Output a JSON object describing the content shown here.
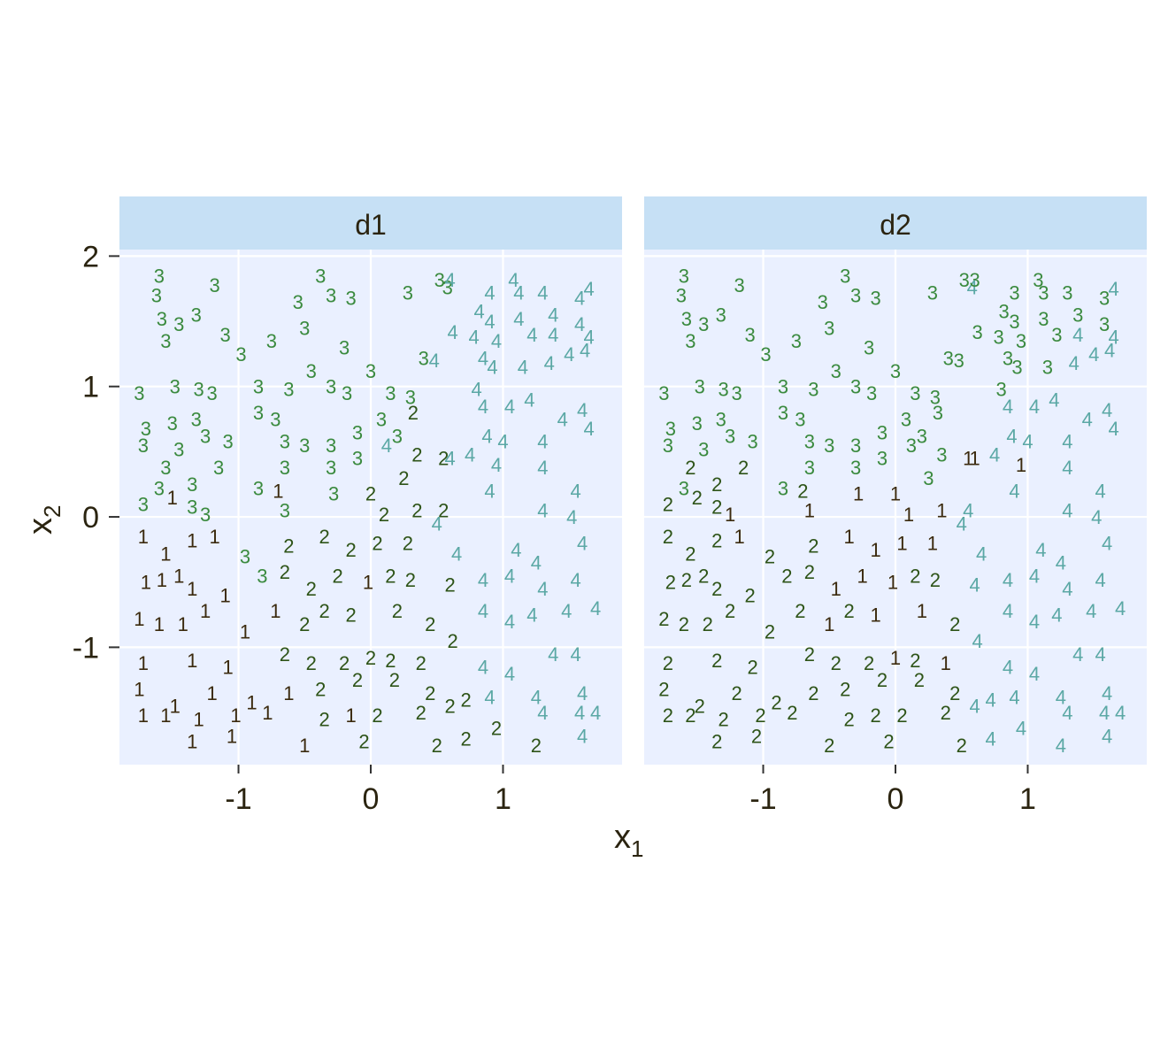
{
  "chart_data": {
    "type": "scatter",
    "facets": [
      "d1",
      "d2"
    ],
    "xlabel": {
      "main": "x",
      "sub": "1"
    },
    "ylabel": {
      "main": "x",
      "sub": "2"
    },
    "xlim": [
      -1.9,
      1.9
    ],
    "ylim": [
      -1.9,
      2.05
    ],
    "xticks": [
      -1,
      0,
      1
    ],
    "yticks": [
      -1,
      0,
      1,
      2
    ],
    "xtick_labels": [
      "-1",
      "0",
      "1"
    ],
    "ytick_labels": [
      "-1",
      "0",
      "1",
      "2"
    ],
    "grid": true,
    "legend": "none",
    "colors": {
      "1": "#3b2a0e",
      "2": "#2e5418",
      "3": "#3a8a3e",
      "4": "#5ba8a5"
    },
    "strip_color": "#c6e0f5",
    "panel_color": "#eaf0ff",
    "points": [
      [
        -1.6,
        1.85,
        "3",
        "3"
      ],
      [
        -1.62,
        1.7,
        "3",
        "3"
      ],
      [
        -1.58,
        1.52,
        "3",
        "3"
      ],
      [
        -1.55,
        1.35,
        "3",
        "3"
      ],
      [
        -1.45,
        1.48,
        "3",
        "3"
      ],
      [
        -1.32,
        1.55,
        "3",
        "3"
      ],
      [
        -1.18,
        1.78,
        "3",
        "3"
      ],
      [
        -1.1,
        1.4,
        "3",
        "3"
      ],
      [
        -0.98,
        1.25,
        "3",
        "3"
      ],
      [
        -0.75,
        1.35,
        "3",
        "3"
      ],
      [
        -0.55,
        1.65,
        "3",
        "3"
      ],
      [
        -0.5,
        1.45,
        "3",
        "3"
      ],
      [
        -0.38,
        1.85,
        "3",
        "3"
      ],
      [
        -0.3,
        1.7,
        "3",
        "3"
      ],
      [
        -0.15,
        1.68,
        "3",
        "3"
      ],
      [
        -0.2,
        1.3,
        "3",
        "3"
      ],
      [
        0.28,
        1.72,
        "3",
        "3"
      ],
      [
        0.52,
        1.82,
        "3",
        "3"
      ],
      [
        0.58,
        1.76,
        "3",
        "4"
      ],
      [
        0.6,
        1.82,
        "4",
        "3"
      ],
      [
        0.9,
        1.72,
        "4",
        "3"
      ],
      [
        1.08,
        1.82,
        "4",
        "3"
      ],
      [
        1.12,
        1.72,
        "4",
        "3"
      ],
      [
        1.3,
        1.72,
        "4",
        "3"
      ],
      [
        1.58,
        1.68,
        "4",
        "3"
      ],
      [
        1.65,
        1.75,
        "4",
        "4"
      ],
      [
        0.82,
        1.58,
        "4",
        "3"
      ],
      [
        0.9,
        1.5,
        "4",
        "3"
      ],
      [
        1.12,
        1.52,
        "4",
        "3"
      ],
      [
        1.38,
        1.55,
        "4",
        "3"
      ],
      [
        1.58,
        1.48,
        "4",
        "3"
      ],
      [
        0.62,
        1.42,
        "4",
        "3"
      ],
      [
        0.78,
        1.38,
        "4",
        "3"
      ],
      [
        0.95,
        1.35,
        "4",
        "3"
      ],
      [
        1.22,
        1.4,
        "4",
        "3"
      ],
      [
        1.38,
        1.4,
        "4",
        "4"
      ],
      [
        1.65,
        1.38,
        "4",
        "4"
      ],
      [
        1.62,
        1.28,
        "4",
        "4"
      ],
      [
        0.85,
        1.22,
        "4",
        "3"
      ],
      [
        0.92,
        1.15,
        "4",
        "3"
      ],
      [
        1.15,
        1.15,
        "4",
        "3"
      ],
      [
        1.35,
        1.18,
        "4",
        "4"
      ],
      [
        1.5,
        1.25,
        "4",
        "4"
      ],
      [
        0.4,
        1.22,
        "3",
        "3"
      ],
      [
        0.48,
        1.2,
        "4",
        "3"
      ],
      [
        -1.48,
        1.0,
        "3",
        "3"
      ],
      [
        -1.75,
        0.95,
        "3",
        "3"
      ],
      [
        -1.3,
        0.98,
        "3",
        "3"
      ],
      [
        -1.2,
        0.95,
        "3",
        "3"
      ],
      [
        -0.85,
        1.0,
        "3",
        "3"
      ],
      [
        -0.62,
        0.98,
        "3",
        "3"
      ],
      [
        -0.45,
        1.12,
        "3",
        "3"
      ],
      [
        -0.3,
        1.0,
        "3",
        "3"
      ],
      [
        -0.18,
        0.95,
        "3",
        "3"
      ],
      [
        0.0,
        1.12,
        "3",
        "3"
      ],
      [
        0.15,
        0.95,
        "3",
        "3"
      ],
      [
        0.3,
        0.92,
        "3",
        "3"
      ],
      [
        0.32,
        0.8,
        "2",
        "3"
      ],
      [
        0.8,
        0.98,
        "4",
        "3"
      ],
      [
        0.85,
        0.85,
        "4",
        "4"
      ],
      [
        1.05,
        0.85,
        "4",
        "4"
      ],
      [
        1.2,
        0.9,
        "4",
        "4"
      ],
      [
        1.45,
        0.75,
        "4",
        "4"
      ],
      [
        1.6,
        0.82,
        "4",
        "4"
      ],
      [
        1.65,
        0.68,
        "4",
        "4"
      ],
      [
        -1.7,
        0.68,
        "3",
        "3"
      ],
      [
        -1.72,
        0.55,
        "3",
        "3"
      ],
      [
        -1.5,
        0.72,
        "3",
        "3"
      ],
      [
        -1.45,
        0.52,
        "3",
        "3"
      ],
      [
        -1.32,
        0.75,
        "3",
        "3"
      ],
      [
        -1.25,
        0.62,
        "3",
        "3"
      ],
      [
        -1.08,
        0.58,
        "3",
        "3"
      ],
      [
        -0.85,
        0.8,
        "3",
        "3"
      ],
      [
        -0.72,
        0.75,
        "3",
        "3"
      ],
      [
        -0.65,
        0.58,
        "3",
        "3"
      ],
      [
        -0.5,
        0.55,
        "3",
        "3"
      ],
      [
        -0.3,
        0.55,
        "3",
        "3"
      ],
      [
        -0.1,
        0.65,
        "3",
        "3"
      ],
      [
        0.08,
        0.75,
        "3",
        "3"
      ],
      [
        0.2,
        0.62,
        "3",
        "3"
      ],
      [
        0.12,
        0.55,
        "4",
        "3"
      ],
      [
        0.35,
        0.48,
        "2",
        "3"
      ],
      [
        0.55,
        0.45,
        "2",
        "1"
      ],
      [
        0.75,
        0.48,
        "4",
        "4"
      ],
      [
        0.88,
        0.62,
        "4",
        "4"
      ],
      [
        1.0,
        0.58,
        "4",
        "4"
      ],
      [
        1.3,
        0.58,
        "4",
        "4"
      ],
      [
        -1.55,
        0.38,
        "3",
        "2"
      ],
      [
        -1.6,
        0.22,
        "3",
        "3"
      ],
      [
        -1.5,
        0.15,
        "1",
        "2"
      ],
      [
        -1.35,
        0.25,
        "3",
        "2"
      ],
      [
        -1.15,
        0.38,
        "3",
        "2"
      ],
      [
        -0.85,
        0.22,
        "3",
        "3"
      ],
      [
        -0.7,
        0.2,
        "1",
        "2"
      ],
      [
        -0.65,
        0.38,
        "3",
        "3"
      ],
      [
        -0.3,
        0.38,
        "3",
        "3"
      ],
      [
        -0.1,
        0.45,
        "3",
        "3"
      ],
      [
        -0.28,
        0.18,
        "3",
        "1"
      ],
      [
        0.25,
        0.3,
        "2",
        "3"
      ],
      [
        0.6,
        0.45,
        "4",
        "1"
      ],
      [
        0.95,
        0.4,
        "4",
        "1"
      ],
      [
        1.3,
        0.38,
        "4",
        "4"
      ],
      [
        1.55,
        0.2,
        "4",
        "4"
      ],
      [
        -1.72,
        0.1,
        "3",
        "2"
      ],
      [
        -1.35,
        0.08,
        "3",
        "2"
      ],
      [
        -1.25,
        0.02,
        "3",
        "1"
      ],
      [
        -0.65,
        0.05,
        "3",
        "1"
      ],
      [
        0.0,
        0.18,
        "2",
        "1"
      ],
      [
        0.1,
        0.02,
        "2",
        "1"
      ],
      [
        0.35,
        0.05,
        "2",
        "1"
      ],
      [
        0.55,
        0.05,
        "2",
        "4"
      ],
      [
        0.9,
        0.2,
        "4",
        "4"
      ],
      [
        1.3,
        0.05,
        "4",
        "4"
      ],
      [
        1.52,
        0.0,
        "4",
        "4"
      ],
      [
        -1.72,
        -0.15,
        "1",
        "2"
      ],
      [
        -1.55,
        -0.28,
        "1",
        "2"
      ],
      [
        -1.35,
        -0.18,
        "1",
        "2"
      ],
      [
        -1.18,
        -0.15,
        "1",
        "1"
      ],
      [
        -0.95,
        -0.3,
        "3",
        "2"
      ],
      [
        -0.62,
        -0.22,
        "2",
        "2"
      ],
      [
        -0.35,
        -0.15,
        "2",
        "1"
      ],
      [
        -0.15,
        -0.25,
        "2",
        "1"
      ],
      [
        0.05,
        -0.2,
        "2",
        "1"
      ],
      [
        0.28,
        -0.2,
        "2",
        "1"
      ],
      [
        0.5,
        -0.05,
        "4",
        "4"
      ],
      [
        0.65,
        -0.28,
        "4",
        "4"
      ],
      [
        1.1,
        -0.25,
        "4",
        "4"
      ],
      [
        1.25,
        -0.35,
        "4",
        "4"
      ],
      [
        1.6,
        -0.2,
        "4",
        "4"
      ],
      [
        -1.7,
        -0.5,
        "1",
        "2"
      ],
      [
        -1.58,
        -0.48,
        "1",
        "2"
      ],
      [
        -1.45,
        -0.45,
        "1",
        "2"
      ],
      [
        -1.35,
        -0.55,
        "1",
        "2"
      ],
      [
        -1.1,
        -0.6,
        "1",
        "2"
      ],
      [
        -0.82,
        -0.45,
        "3",
        "2"
      ],
      [
        -0.65,
        -0.42,
        "2",
        "2"
      ],
      [
        -0.45,
        -0.55,
        "2",
        "1"
      ],
      [
        -0.25,
        -0.45,
        "2",
        "1"
      ],
      [
        -0.02,
        -0.5,
        "1",
        "1"
      ],
      [
        0.15,
        -0.45,
        "2",
        "2"
      ],
      [
        0.3,
        -0.48,
        "2",
        "2"
      ],
      [
        0.6,
        -0.52,
        "2",
        "4"
      ],
      [
        0.85,
        -0.48,
        "4",
        "4"
      ],
      [
        1.05,
        -0.45,
        "4",
        "4"
      ],
      [
        1.3,
        -0.55,
        "4",
        "4"
      ],
      [
        1.55,
        -0.48,
        "4",
        "4"
      ],
      [
        -1.75,
        -0.78,
        "1",
        "2"
      ],
      [
        -1.6,
        -0.82,
        "1",
        "2"
      ],
      [
        -1.42,
        -0.82,
        "1",
        "2"
      ],
      [
        -1.25,
        -0.72,
        "1",
        "2"
      ],
      [
        -0.95,
        -0.88,
        "1",
        "2"
      ],
      [
        -0.72,
        -0.72,
        "1",
        "2"
      ],
      [
        -0.5,
        -0.82,
        "2",
        "1"
      ],
      [
        -0.35,
        -0.72,
        "2",
        "2"
      ],
      [
        -0.15,
        -0.75,
        "2",
        "1"
      ],
      [
        0.2,
        -0.72,
        "2",
        "1"
      ],
      [
        0.45,
        -0.82,
        "2",
        "2"
      ],
      [
        0.85,
        -0.72,
        "4",
        "4"
      ],
      [
        1.05,
        -0.8,
        "4",
        "4"
      ],
      [
        1.22,
        -0.75,
        "4",
        "4"
      ],
      [
        1.48,
        -0.72,
        "4",
        "4"
      ],
      [
        1.7,
        -0.7,
        "4",
        "4"
      ],
      [
        -1.72,
        -1.12,
        "1",
        "2"
      ],
      [
        -1.35,
        -1.1,
        "1",
        "2"
      ],
      [
        -1.08,
        -1.15,
        "1",
        "2"
      ],
      [
        -0.65,
        -1.05,
        "2",
        "2"
      ],
      [
        -0.45,
        -1.12,
        "2",
        "2"
      ],
      [
        -0.2,
        -1.12,
        "2",
        "2"
      ],
      [
        0.0,
        -1.08,
        "2",
        "1"
      ],
      [
        0.15,
        -1.1,
        "2",
        "2"
      ],
      [
        0.38,
        -1.12,
        "2",
        "1"
      ],
      [
        0.62,
        -0.95,
        "2",
        "4"
      ],
      [
        0.85,
        -1.15,
        "4",
        "4"
      ],
      [
        1.05,
        -1.2,
        "4",
        "4"
      ],
      [
        1.38,
        -1.05,
        "4",
        "4"
      ],
      [
        1.55,
        -1.05,
        "4",
        "4"
      ],
      [
        -1.75,
        -1.32,
        "1",
        "2"
      ],
      [
        -1.48,
        -1.45,
        "1",
        "2"
      ],
      [
        -1.2,
        -1.35,
        "1",
        "2"
      ],
      [
        -0.9,
        -1.42,
        "1",
        "2"
      ],
      [
        -0.62,
        -1.35,
        "1",
        "2"
      ],
      [
        -0.38,
        -1.32,
        "2",
        "2"
      ],
      [
        -0.1,
        -1.25,
        "2",
        "2"
      ],
      [
        0.18,
        -1.25,
        "2",
        "2"
      ],
      [
        0.45,
        -1.35,
        "2",
        "2"
      ],
      [
        0.72,
        -1.4,
        "2",
        "4"
      ],
      [
        0.9,
        -1.38,
        "4",
        "4"
      ],
      [
        1.25,
        -1.38,
        "4",
        "4"
      ],
      [
        1.6,
        -1.35,
        "4",
        "4"
      ],
      [
        -1.72,
        -1.52,
        "1",
        "2"
      ],
      [
        -1.55,
        -1.52,
        "1",
        "2"
      ],
      [
        -1.3,
        -1.55,
        "1",
        "2"
      ],
      [
        -1.02,
        -1.52,
        "1",
        "2"
      ],
      [
        -0.78,
        -1.5,
        "1",
        "2"
      ],
      [
        -0.35,
        -1.55,
        "2",
        "2"
      ],
      [
        -0.15,
        -1.52,
        "1",
        "2"
      ],
      [
        0.05,
        -1.52,
        "2",
        "2"
      ],
      [
        0.38,
        -1.5,
        "2",
        "2"
      ],
      [
        0.6,
        -1.45,
        "2",
        "4"
      ],
      [
        0.95,
        -1.62,
        "2",
        "4"
      ],
      [
        1.3,
        -1.5,
        "4",
        "4"
      ],
      [
        1.58,
        -1.5,
        "4",
        "4"
      ],
      [
        1.7,
        -1.5,
        "4",
        "4"
      ],
      [
        -1.35,
        -1.72,
        "1",
        "2"
      ],
      [
        -1.05,
        -1.68,
        "1",
        "2"
      ],
      [
        -0.5,
        -1.75,
        "1",
        "2"
      ],
      [
        -0.05,
        -1.72,
        "2",
        "2"
      ],
      [
        0.5,
        -1.75,
        "2",
        "2"
      ],
      [
        0.72,
        -1.7,
        "2",
        "4"
      ],
      [
        1.25,
        -1.75,
        "2",
        "4"
      ],
      [
        1.6,
        -1.68,
        "4",
        "4"
      ]
    ]
  }
}
